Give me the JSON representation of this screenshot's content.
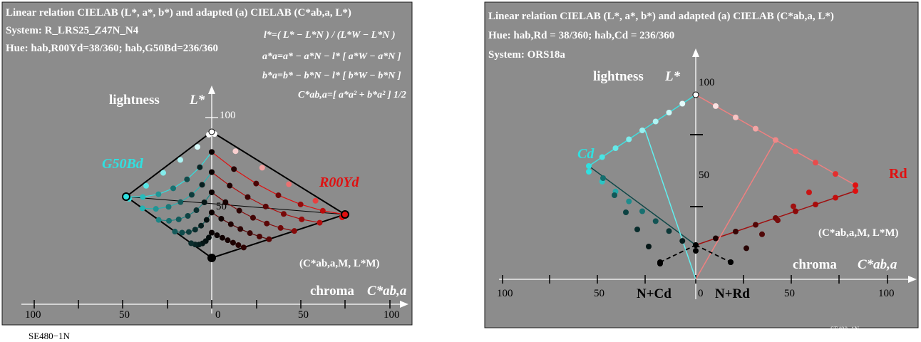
{
  "left": {
    "title": "Linear relation CIELAB (L*, a*, b*) and adapted (a) CIELAB (C*ab,a, L*)",
    "system": "System: R_LRS25_Z47N_N4",
    "hue": "Hue: hab,R00Yd=38/360; hab,G50Bd=236/360",
    "formulas": [
      "l*=( L* − L*N ) / (L*W − L*N )",
      "a*a=a* − a*N − l* [ a*W − a*N ]",
      "b*a=b* − b*N − l* [ b*W − b*N ]",
      "C*ab,a=[ a*a² + b*a² ] 1/2"
    ],
    "lightness_label": "lightness",
    "lightness_symbol": "L*",
    "chroma_label": "chroma",
    "chroma_symbol": "C*ab,a",
    "left_hue_label": "G50Bd",
    "right_hue_label": "R00Yd",
    "coord_label": "(C*ab,a,M, L*M)",
    "x_ticks": [
      "100",
      "50",
      "0",
      "50",
      "100"
    ],
    "y_ticks": [
      "100",
      "50"
    ],
    "footer": "SE480−1N"
  },
  "right": {
    "title": "Linear relation CIELAB (L*, a*, b*) and adapted (a) CIELAB (C*ab,a, L*)",
    "hue": "Hue: hab,Rd = 38/360; hab,Cd = 236/360",
    "system": "System: ORS18a",
    "lightness_label": "lightness",
    "lightness_symbol": "L*",
    "chroma_label": "chroma",
    "chroma_symbol": "C*ab,a",
    "left_hue_label": "Cd",
    "right_hue_label": "Rd",
    "coord_label": "(C*ab,a,M, L*M)",
    "left_base_label": "N+Cd",
    "right_base_label": "N+Rd",
    "x_ticks": [
      "100",
      "50",
      "0",
      "50",
      "100"
    ],
    "y_ticks": [
      "100",
      "50"
    ],
    "footer": "SE400−1N"
  },
  "colors": {
    "panel": "#8c8c8c",
    "red": "#e01010",
    "cyan": "#30e0e0",
    "dark": "#000000"
  }
}
